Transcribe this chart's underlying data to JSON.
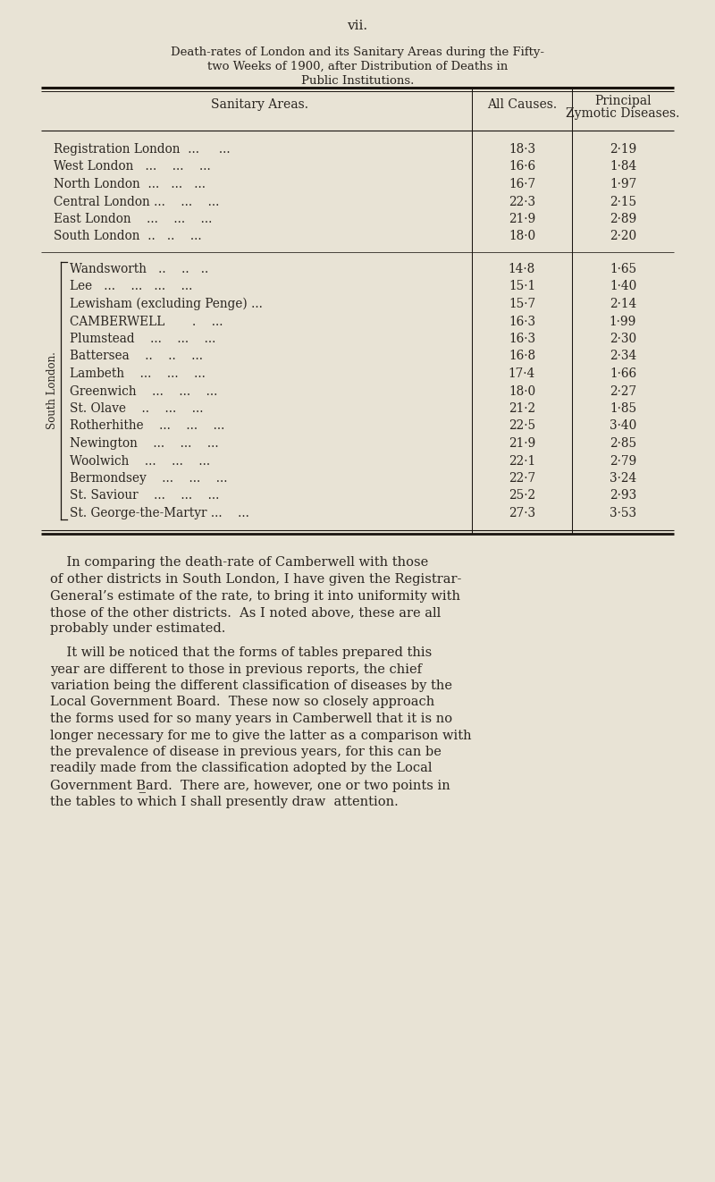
{
  "page_num": "vii.",
  "title_line1": "Death-rates of London and its Sanitary Areas during the Fifty-",
  "title_line2": "two Weeks of 1900, after Distribution of Deaths in",
  "title_line3": "Public Institutions.",
  "top_rows": [
    [
      "Registration London  ...     ...",
      "18·3",
      "2·19"
    ],
    [
      "West London   ...    ...    ...",
      "16·6",
      "1·84"
    ],
    [
      "North London  ...   ...   ...",
      "16·7",
      "1·97"
    ],
    [
      "Central London ...    ...    ...",
      "22·3",
      "2·15"
    ],
    [
      "East London    ...    ...    ...",
      "21·9",
      "2·89"
    ],
    [
      "South London  ..   ..    ...",
      "18·0",
      "2·20"
    ]
  ],
  "south_london_rows": [
    [
      "Wandsworth   ..    ..   ..",
      "14·8",
      "1·65"
    ],
    [
      "Lee   ...    ...   ...    ...",
      "15·1",
      "1·40"
    ],
    [
      "Lewisham (excluding Penge) ...",
      "15·7",
      "2·14"
    ],
    [
      "CAMBERWELL       .    ...",
      "16·3",
      "1·99"
    ],
    [
      "Plumstead    ...    ...    ...",
      "16·3",
      "2·30"
    ],
    [
      "Battersea    ..    ..    ...",
      "16·8",
      "2·34"
    ],
    [
      "Lambeth    ...    ...    ...",
      "17·4",
      "1·66"
    ],
    [
      "Greenwich    ...    ...    ...",
      "18·0",
      "2·27"
    ],
    [
      "St. Olave    ..    ...    ...",
      "21·2",
      "1·85"
    ],
    [
      "Rotherhithe    ...    ...    ...",
      "22·5",
      "3·40"
    ],
    [
      "Newington    ...    ...    ...",
      "21·9",
      "2·85"
    ],
    [
      "Woolwich    ...    ...    ...",
      "22·1",
      "2·79"
    ],
    [
      "Bermondsey    ...    ...    ...",
      "22·7",
      "3·24"
    ],
    [
      "St. Saviour    ...    ...    ...",
      "25·2",
      "2·93"
    ],
    [
      "St. George-the-Martyr ...    ...",
      "27·3",
      "3·53"
    ]
  ],
  "south_london_label": "South London.",
  "paragraph1_lines": [
    "    In comparing the death-rate of Camberwell with those",
    "of other districts in South London, I have given the Registrar-",
    "General’s estimate of the rate, to bring it into uniformity with",
    "those of the other districts.  As I noted above, these are all",
    "probably under estimated."
  ],
  "paragraph2_lines": [
    "    It will be noticed that the forms of tables prepared this",
    "year are different to those in previous reports, the chief",
    "variation being the different classification of diseases by the",
    "Local Government Board.  These now so closely approach",
    "the forms used for so many years in Camberwell that it is no",
    "longer necessary for me to give the latter as a comparison with",
    "the prevalence of disease in previous years, for this can be",
    "readily made from the classification adopted by the Local",
    "Government B̲ard.  There are, however, one or two points in",
    "the tables to which I shall presently draw  attention."
  ],
  "bg_color": "#e8e3d5",
  "text_color": "#2a2520",
  "table_line_color": "#1a1510"
}
